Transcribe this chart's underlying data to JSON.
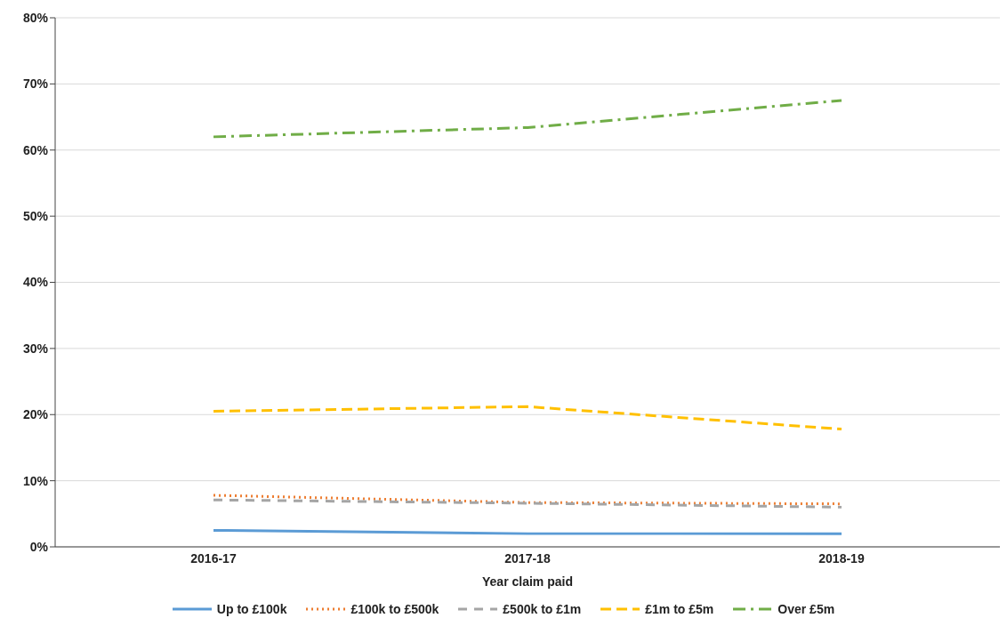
{
  "chart_data": {
    "type": "line",
    "xlabel": "Year claim paid",
    "categories": [
      "2016-17",
      "2017-18",
      "2018-19"
    ],
    "series": [
      {
        "name": "Up to £100k",
        "color": "#5b9bd5",
        "line_style": "solid",
        "values": [
          2.5,
          2.0,
          2.0
        ]
      },
      {
        "name": "£100k to £500k",
        "color": "#ed7d31",
        "line_style": "dotted",
        "values": [
          7.8,
          6.7,
          6.5
        ]
      },
      {
        "name": "£500k to £1m",
        "color": "#a5a5a5",
        "line_style": "dashed",
        "values": [
          7.1,
          6.6,
          6.0
        ]
      },
      {
        "name": "£1m to £5m",
        "color": "#ffc000",
        "line_style": "dashed",
        "values": [
          20.5,
          21.2,
          17.8
        ]
      },
      {
        "name": "Over £5m",
        "color": "#70ad47",
        "line_style": "dashdot",
        "values": [
          62.0,
          63.4,
          67.5
        ]
      }
    ],
    "ylim": [
      0,
      80
    ],
    "yticks": [
      {
        "value": 0,
        "label": "0%"
      },
      {
        "value": 10,
        "label": "10%"
      },
      {
        "value": 20,
        "label": "20%"
      },
      {
        "value": 30,
        "label": "30%"
      },
      {
        "value": 40,
        "label": "40%"
      },
      {
        "value": 50,
        "label": "50%"
      },
      {
        "value": 60,
        "label": "60%"
      },
      {
        "value": 70,
        "label": "70%"
      },
      {
        "value": 80,
        "label": "80%"
      }
    ],
    "grid": "y",
    "legend": "bottom",
    "marker": "none"
  }
}
